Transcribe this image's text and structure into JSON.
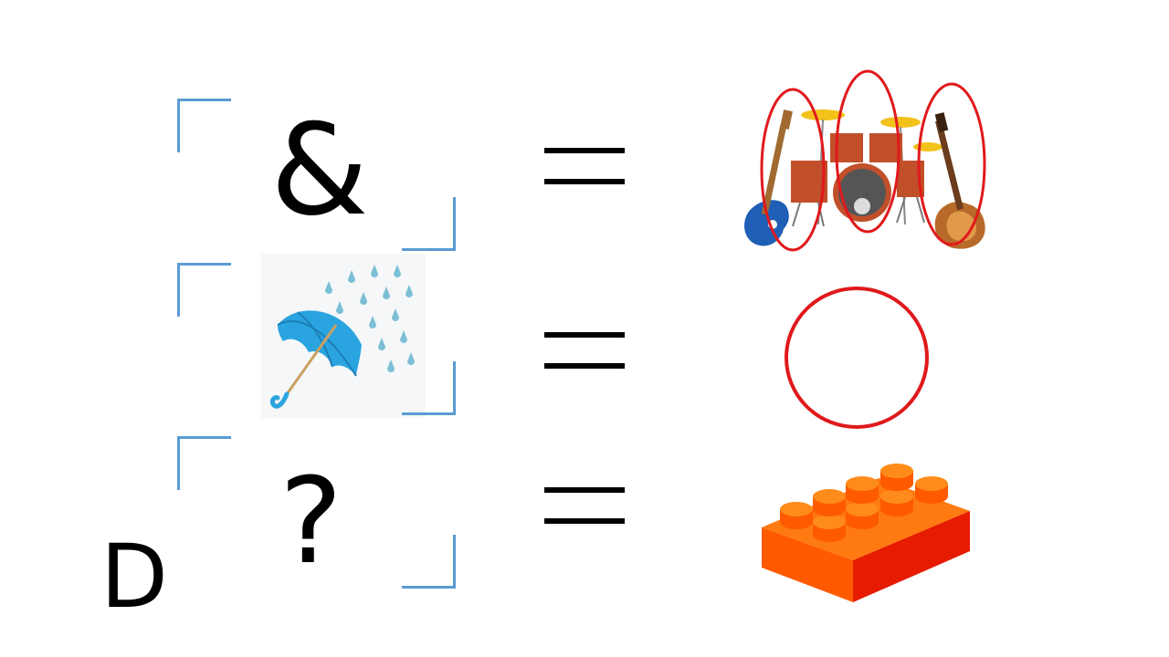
{
  "rows": [
    {
      "symbol": "&",
      "equals": "=",
      "result_icon": "band-instruments-icon"
    },
    {
      "symbol_icon": "umbrella-rain-icon",
      "equals": "=",
      "result_icon": "circle-icon"
    },
    {
      "symbol": "?",
      "equals": "=",
      "result_icon": "lego-brick-icon"
    }
  ],
  "corner_letter": "D",
  "colors": {
    "bracket": "#5b9bd5",
    "circle": "#e0191c",
    "lego": "#ff5a00",
    "umbrella": "#2aa4e0"
  }
}
